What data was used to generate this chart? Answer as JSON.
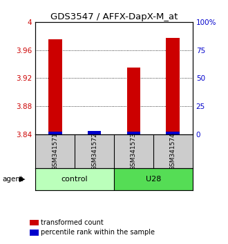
{
  "title": "GDS3547 / AFFX-DapX-M_at",
  "samples": [
    "GSM341571",
    "GSM341572",
    "GSM341573",
    "GSM341574"
  ],
  "red_values": [
    3.975,
    3.84,
    3.935,
    3.977
  ],
  "blue_percentiles": [
    2,
    3,
    2,
    2
  ],
  "ylim_left": [
    3.84,
    4.0
  ],
  "ylim_right": [
    0,
    100
  ],
  "yticks_left": [
    3.84,
    3.88,
    3.92,
    3.96,
    4.0
  ],
  "ytick_labels_left": [
    "3.84",
    "3.88",
    "3.92",
    "3.96",
    "4"
  ],
  "yticks_right": [
    0,
    25,
    50,
    75,
    100
  ],
  "ytick_labels_right": [
    "0",
    "25",
    "50",
    "75",
    "100%"
  ],
  "groups": [
    {
      "label": "control",
      "samples": [
        0,
        1
      ],
      "color": "#bbffbb"
    },
    {
      "label": "U28",
      "samples": [
        2,
        3
      ],
      "color": "#55dd55"
    }
  ],
  "bar_width": 0.35,
  "red_color": "#cc0000",
  "blue_color": "#0000cc",
  "bg_plot": "#ffffff",
  "bg_label": "#cccccc",
  "legend_red_label": "transformed count",
  "legend_blue_label": "percentile rank within the sample"
}
